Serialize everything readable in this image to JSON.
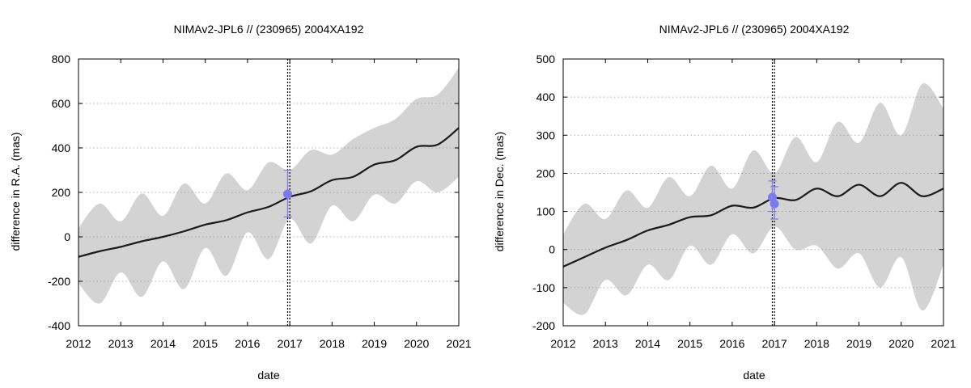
{
  "chart_data": [
    {
      "type": "line",
      "title": "NIMAv2-JPL6 // (230965) 2004XA192",
      "xlabel": "date",
      "ylabel": "difference in R.A. (mas)",
      "xlim": [
        2012,
        2021
      ],
      "ylim": [
        -400,
        800
      ],
      "xticks": [
        2012,
        2013,
        2014,
        2015,
        2016,
        2017,
        2018,
        2019,
        2020,
        2021
      ],
      "yticks": [
        -400,
        -200,
        0,
        200,
        400,
        600,
        800
      ],
      "grid": "horizontal-dotted",
      "x": [
        2012.0,
        2012.5,
        2013.0,
        2013.5,
        2014.0,
        2014.5,
        2015.0,
        2015.5,
        2016.0,
        2016.5,
        2017.0,
        2017.5,
        2018.0,
        2018.5,
        2019.0,
        2019.5,
        2020.0,
        2020.5,
        2021.0
      ],
      "series": [
        {
          "name": "difference",
          "values": [
            -90,
            -65,
            -45,
            -20,
            0,
            25,
            55,
            75,
            110,
            135,
            180,
            205,
            255,
            270,
            325,
            345,
            405,
            415,
            490
          ]
        },
        {
          "name": "upper envelope",
          "values": [
            40,
            150,
            70,
            195,
            95,
            240,
            150,
            285,
            210,
            335,
            300,
            390,
            370,
            440,
            490,
            530,
            620,
            640,
            760
          ]
        },
        {
          "name": "lower envelope",
          "values": [
            -210,
            -300,
            -160,
            -270,
            -110,
            -235,
            -50,
            -175,
            20,
            -100,
            80,
            -30,
            140,
            70,
            190,
            150,
            250,
            200,
            270
          ]
        }
      ],
      "markers": [
        {
          "x": 2016.95,
          "y": 192,
          "yerr_low": 90,
          "yerr_high": 300
        }
      ],
      "vlines": [
        2016.95,
        2017.0
      ]
    },
    {
      "type": "line",
      "title": "NIMAv2-JPL6 // (230965) 2004XA192",
      "xlabel": "date",
      "ylabel": "difference in Dec. (mas)",
      "xlim": [
        2012,
        2021
      ],
      "ylim": [
        -200,
        500
      ],
      "xticks": [
        2012,
        2013,
        2014,
        2015,
        2016,
        2017,
        2018,
        2019,
        2020,
        2021
      ],
      "yticks": [
        -200,
        -100,
        0,
        100,
        200,
        300,
        400,
        500
      ],
      "grid": "horizontal-dotted",
      "x": [
        2012.0,
        2012.5,
        2013.0,
        2013.5,
        2014.0,
        2014.5,
        2015.0,
        2015.5,
        2016.0,
        2016.5,
        2017.0,
        2017.5,
        2018.0,
        2018.5,
        2019.0,
        2019.5,
        2020.0,
        2020.5,
        2021.0
      ],
      "series": [
        {
          "name": "difference",
          "values": [
            -45,
            -20,
            5,
            25,
            50,
            65,
            85,
            90,
            115,
            110,
            135,
            130,
            160,
            140,
            170,
            140,
            175,
            140,
            160
          ]
        },
        {
          "name": "upper envelope",
          "values": [
            40,
            120,
            80,
            155,
            110,
            190,
            140,
            220,
            160,
            260,
            200,
            295,
            230,
            335,
            280,
            385,
            300,
            435,
            370
          ]
        },
        {
          "name": "lower envelope",
          "values": [
            -140,
            -170,
            -80,
            -120,
            -40,
            -80,
            10,
            -40,
            40,
            -10,
            60,
            0,
            10,
            -50,
            -10,
            -100,
            -20,
            -160,
            -40
          ]
        }
      ],
      "markers": [
        {
          "x": 2016.95,
          "y": 137,
          "yerr_low": 100,
          "yerr_high": 180
        },
        {
          "x": 2017.0,
          "y": 120,
          "yerr_low": 80,
          "yerr_high": 165
        }
      ],
      "vlines": [
        2016.95,
        2017.0
      ]
    }
  ]
}
